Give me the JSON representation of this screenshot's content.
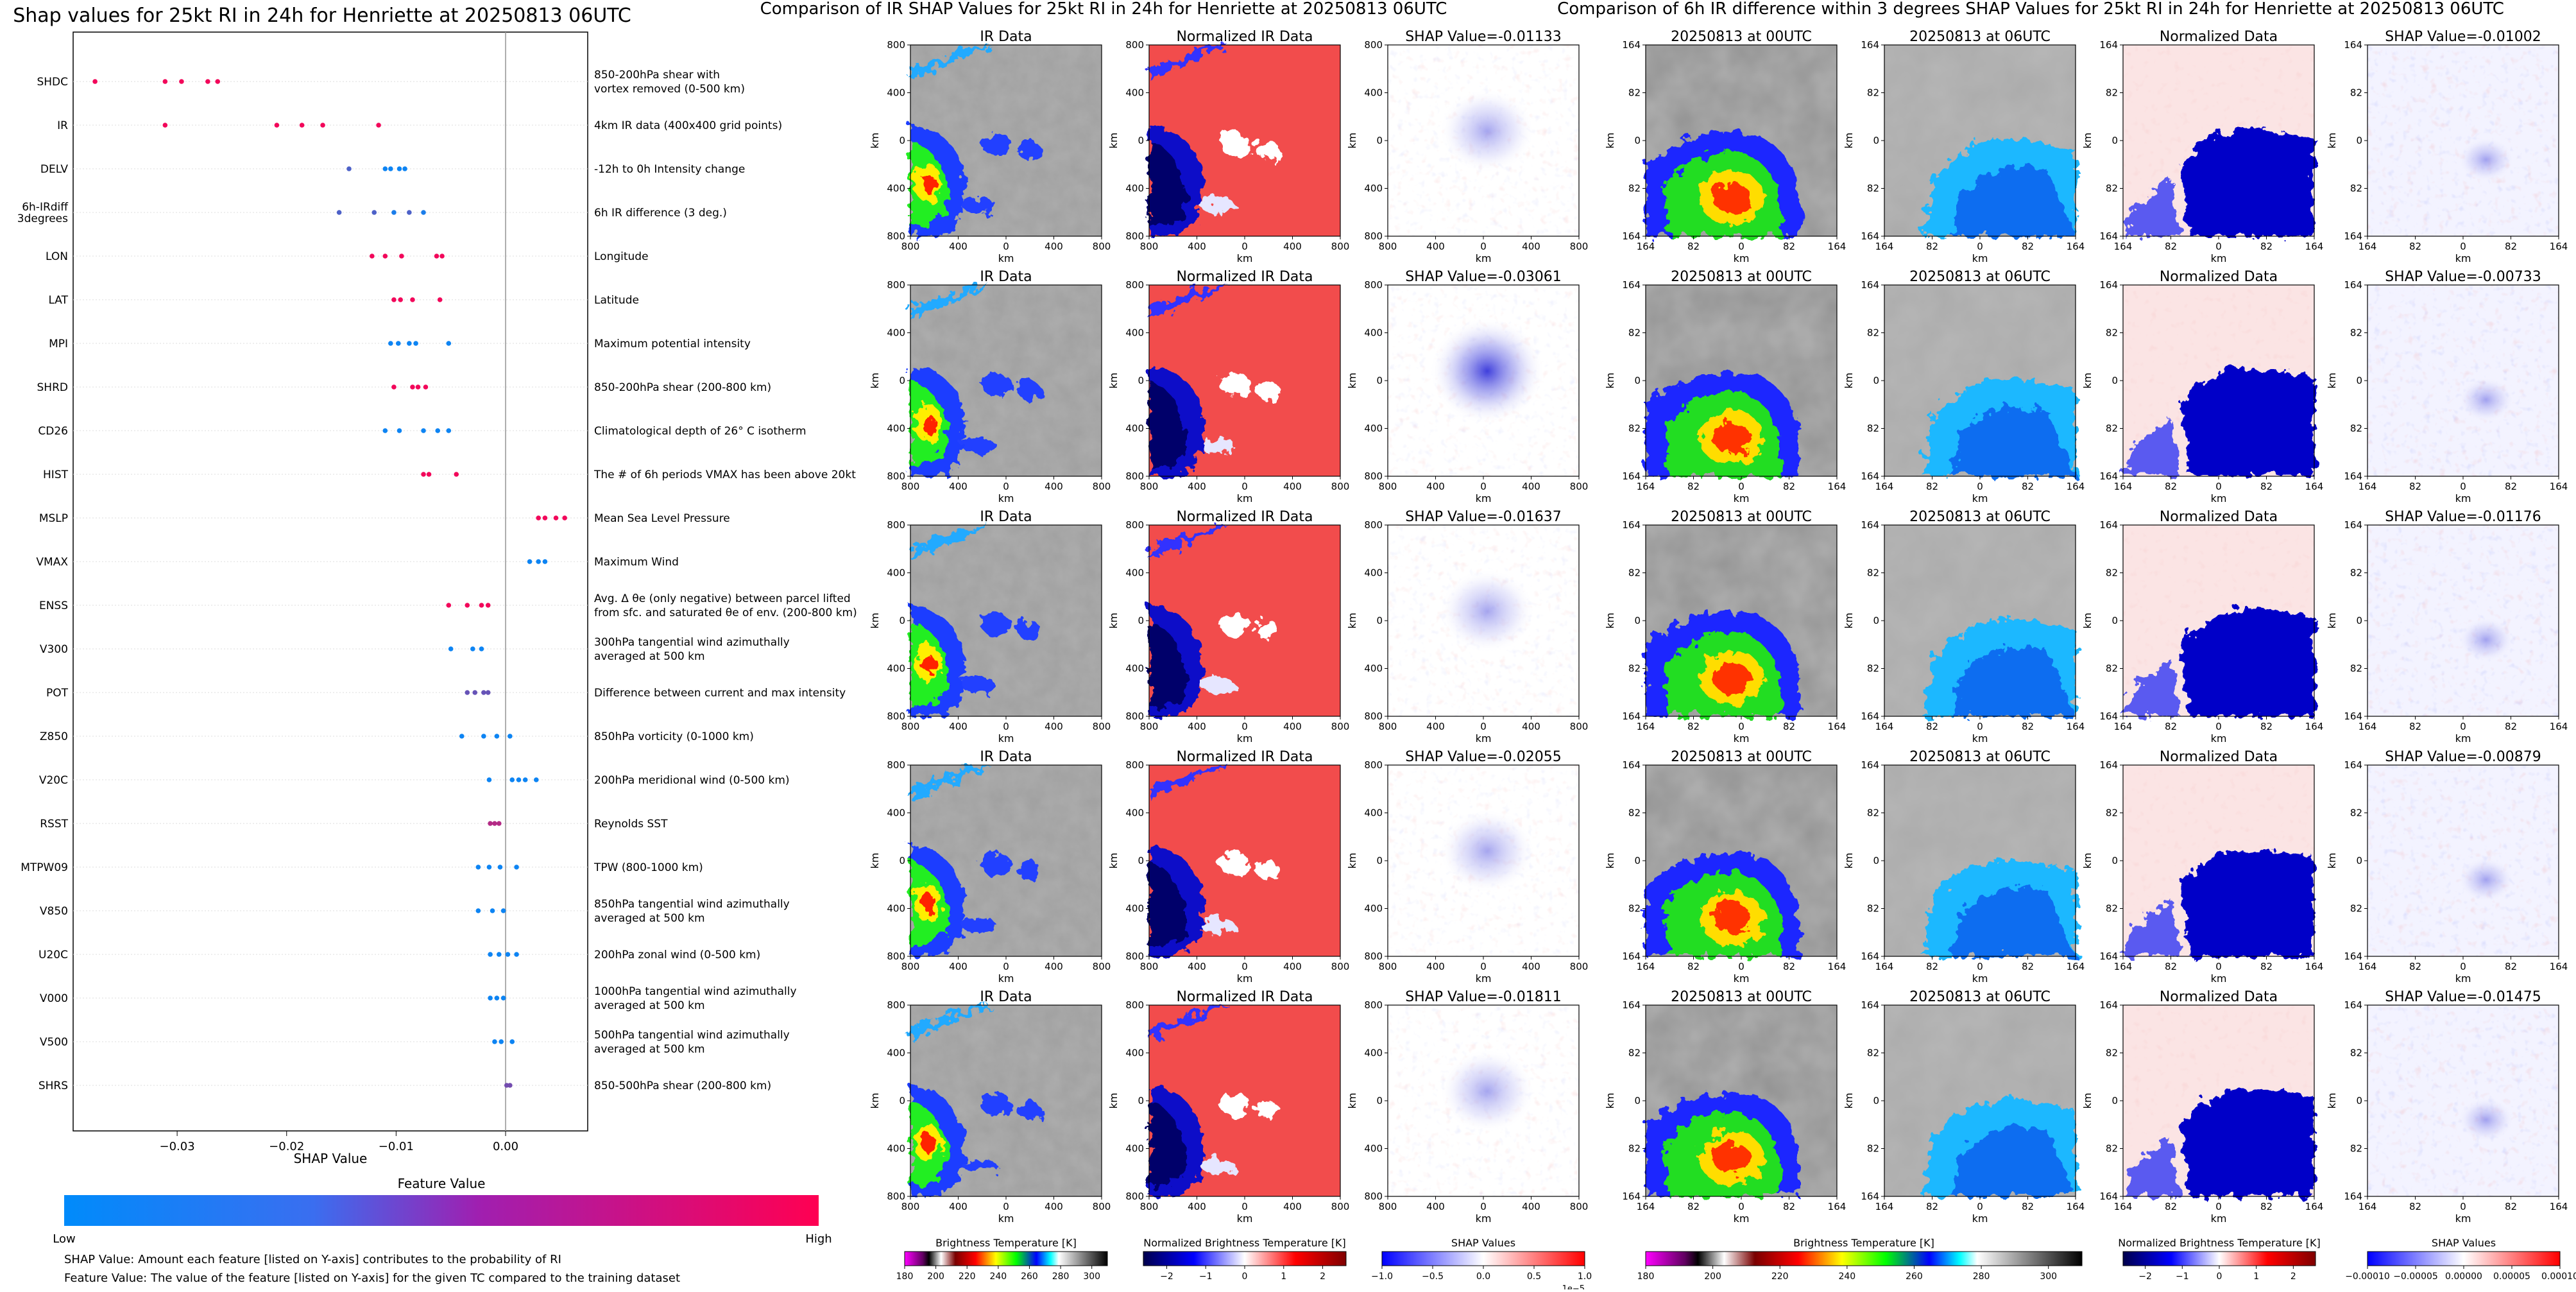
{
  "left_panel": {
    "title": "Shap values for 25kt RI in 24h for Henriette at 20250813 06UTC",
    "xlabel": "SHAP Value",
    "colorbar": {
      "title": "Feature Value",
      "low_label": "Low",
      "high_label": "High",
      "colors": [
        "#008bfb",
        "#5a53d0",
        "#c014a0",
        "#ff0052"
      ]
    },
    "notes": [
      "SHAP Value: Amount each feature [listed on Y-axis] contributes to the probability of RI",
      "Feature Value: The value of the feature [listed on Y-axis] for the given TC compared to the training dataset"
    ]
  },
  "chart_data": [
    {
      "type": "scatter",
      "title": "Shap values for 25kt RI in 24h for Henriette at 20250813 06UTC",
      "xlabel": "SHAP Value",
      "xlim": [
        -0.0395,
        0.0075
      ],
      "xticks": [
        -0.03,
        -0.02,
        -0.01,
        0.0
      ],
      "xtick_labels": [
        "−0.03",
        "−0.02",
        "−0.01",
        "0.00"
      ],
      "legend": "colorbar below plot (Low to High feature value)",
      "features": [
        {
          "name": "SHDC",
          "description": "850-200hPa shear with\nvortex removed (0-500 km)",
          "shap": [
            -0.0375,
            -0.0311,
            -0.0296,
            -0.0272,
            -0.0263
          ],
          "feature_value": [
            0.95,
            0.95,
            0.95,
            0.95,
            0.95
          ]
        },
        {
          "name": "IR",
          "description": "4km IR data (400x400 grid points)",
          "shap": [
            -0.0311,
            -0.0209,
            -0.0186,
            -0.0167,
            -0.0116
          ],
          "feature_value": [
            0.95,
            0.95,
            0.95,
            0.95,
            0.95
          ]
        },
        {
          "name": "DELV",
          "description": "-12h to 0h Intensity change",
          "shap": [
            -0.0143,
            -0.011,
            -0.0105,
            -0.0097,
            -0.0092
          ],
          "feature_value": [
            0.3,
            0.05,
            0.05,
            0.05,
            0.05
          ]
        },
        {
          "name": "6h-IRdiff\n3degrees",
          "description": "6h IR difference (3 deg.)",
          "shap": [
            -0.0152,
            -0.012,
            -0.0102,
            -0.0088,
            -0.0075
          ],
          "feature_value": [
            0.3,
            0.3,
            0.1,
            0.3,
            0.1
          ]
        },
        {
          "name": "LON",
          "description": "Longitude",
          "shap": [
            -0.0122,
            -0.011,
            -0.0095,
            -0.0063,
            -0.0058
          ],
          "feature_value": [
            0.95,
            0.95,
            0.95,
            0.95,
            0.95
          ]
        },
        {
          "name": "LAT",
          "description": "Latitude",
          "shap": [
            -0.0102,
            -0.0096,
            -0.0085,
            -0.006
          ],
          "feature_value": [
            0.95,
            0.95,
            0.95,
            0.95
          ]
        },
        {
          "name": "MPI",
          "description": "Maximum potential intensity",
          "shap": [
            -0.0105,
            -0.0098,
            -0.0088,
            -0.0082,
            -0.0052
          ],
          "feature_value": [
            0.05,
            0.05,
            0.05,
            0.05,
            0.05
          ]
        },
        {
          "name": "SHRD",
          "description": "850-200hPa shear (200-800 km)",
          "shap": [
            -0.0102,
            -0.0085,
            -0.008,
            -0.0073
          ],
          "feature_value": [
            0.95,
            0.95,
            0.95,
            0.95
          ]
        },
        {
          "name": "CD26",
          "description": "Climatological depth of 26° C isotherm",
          "shap": [
            -0.011,
            -0.0097,
            -0.0075,
            -0.0062,
            -0.0052
          ],
          "feature_value": [
            0.05,
            0.05,
            0.05,
            0.05,
            0.05
          ]
        },
        {
          "name": "HIST",
          "description": "The # of 6h periods VMAX has been above 20kt",
          "shap": [
            -0.0075,
            -0.007,
            -0.0045
          ],
          "feature_value": [
            0.95,
            0.95,
            0.95
          ]
        },
        {
          "name": "MSLP",
          "description": "Mean Sea Level Pressure",
          "shap": [
            0.003,
            0.0036,
            0.0046,
            0.0054
          ],
          "feature_value": [
            0.95,
            0.95,
            0.95,
            0.95
          ]
        },
        {
          "name": "VMAX",
          "description": "Maximum Wind",
          "shap": [
            0.0022,
            0.003,
            0.0036
          ],
          "feature_value": [
            0.05,
            0.05,
            0.05
          ]
        },
        {
          "name": "ENSS",
          "description": "Avg. Δ θe (only negative) between parcel lifted\nfrom sfc. and saturated θe of env. (200-800 km)",
          "shap": [
            -0.0052,
            -0.0035,
            -0.0022,
            -0.0016
          ],
          "feature_value": [
            0.95,
            0.95,
            0.95,
            0.95
          ]
        },
        {
          "name": "V300",
          "description": "300hPa tangential wind azimuthally\naveraged at 500 km",
          "shap": [
            -0.005,
            -0.003,
            -0.0022
          ],
          "feature_value": [
            0.05,
            0.05,
            0.05
          ]
        },
        {
          "name": "POT",
          "description": "Difference between current and max intensity",
          "shap": [
            -0.0035,
            -0.0028,
            -0.002,
            -0.0016
          ],
          "feature_value": [
            0.4,
            0.4,
            0.4,
            0.4
          ]
        },
        {
          "name": "Z850",
          "description": "850hPa vorticity (0-1000 km)",
          "shap": [
            -0.004,
            -0.002,
            -0.0008,
            0.0004
          ],
          "feature_value": [
            0.05,
            0.05,
            0.05,
            0.05
          ]
        },
        {
          "name": "V20C",
          "description": "200hPa meridional wind (0-500 km)",
          "shap": [
            -0.0015,
            0.0006,
            0.0012,
            0.0018,
            0.0028
          ],
          "feature_value": [
            0.05,
            0.05,
            0.05,
            0.05,
            0.05
          ]
        },
        {
          "name": "RSST",
          "description": "Reynolds SST",
          "shap": [
            -0.0014,
            -0.001,
            -0.0006
          ],
          "feature_value": [
            0.7,
            0.7,
            0.7
          ]
        },
        {
          "name": "MTPW09",
          "description": "TPW (800-1000 km)",
          "shap": [
            -0.0025,
            -0.0015,
            -0.0005,
            0.001
          ],
          "feature_value": [
            0.05,
            0.05,
            0.05,
            0.05
          ]
        },
        {
          "name": "V850",
          "description": "850hPa tangential wind azimuthally\naveraged at 500 km",
          "shap": [
            -0.0025,
            -0.0012,
            -0.0002
          ],
          "feature_value": [
            0.05,
            0.05,
            0.05
          ]
        },
        {
          "name": "U20C",
          "description": "200hPa zonal wind (0-500 km)",
          "shap": [
            -0.0014,
            -0.0006,
            0.0002,
            0.001
          ],
          "feature_value": [
            0.05,
            0.05,
            0.05,
            0.05
          ]
        },
        {
          "name": "V000",
          "description": "1000hPa tangential wind azimuthally\naveraged at 500 km",
          "shap": [
            -0.0014,
            -0.0008,
            -0.0002
          ],
          "feature_value": [
            0.05,
            0.05,
            0.05
          ]
        },
        {
          "name": "V500",
          "description": "500hPa tangential wind azimuthally\naveraged at 500 km",
          "shap": [
            -0.001,
            -0.0004,
            0.0006
          ],
          "feature_value": [
            0.05,
            0.05,
            0.05
          ]
        },
        {
          "name": "SHRS",
          "description": "850-500hPa shear (200-800 km)",
          "shap": [
            0.0001,
            0.0004
          ],
          "feature_value": [
            0.45,
            0.45
          ]
        }
      ]
    },
    {
      "type": "heatmap",
      "title": "Comparison of IR SHAP Values for 25kt RI in 24h for Henriette at 20250813 06UTC",
      "column_titles_static": [
        "IR Data",
        "Normalized IR Data"
      ],
      "shap_titles": [
        "SHAP Value=-0.01133",
        "SHAP Value=-0.03061",
        "SHAP Value=-0.01637",
        "SHAP Value=-0.02055",
        "SHAP Value=-0.01811"
      ],
      "xlabel": "km",
      "ylabel": "km",
      "xtick_labels": [
        "800",
        "400",
        "0",
        "400",
        "800"
      ],
      "ytick_labels": [
        "800",
        "400",
        "0",
        "400",
        "800"
      ],
      "colorbars": [
        {
          "label": "Brightness Temperature [K]",
          "ticks": [
            "180",
            "200",
            "220",
            "240",
            "260",
            "280",
            "300"
          ],
          "range": [
            180,
            310
          ]
        },
        {
          "label": "Normalized Brightness Temperature [K]",
          "ticks": [
            "−2",
            "−1",
            "0",
            "1",
            "2"
          ],
          "range": [
            -2.6,
            2.6
          ]
        },
        {
          "label": "SHAP Values",
          "ticks": [
            "−1.0",
            "−0.5",
            "0.0",
            "0.5",
            "1.0"
          ],
          "range": [
            -1,
            1
          ],
          "offset": "1e−5"
        }
      ]
    },
    {
      "type": "heatmap",
      "title": "Comparison of 6h IR difference within 3 degrees SHAP Values for 25kt RI in 24h for Henriette at 20250813 06UTC",
      "column_titles_static": [
        "20250813 at 00UTC",
        "20250813 at 06UTC",
        "Normalized Data"
      ],
      "shap_titles": [
        "SHAP Value=-0.01002",
        "SHAP Value=-0.00733",
        "SHAP Value=-0.01176",
        "SHAP Value=-0.00879",
        "SHAP Value=-0.01475"
      ],
      "xlabel": "km",
      "ylabel": "km",
      "xtick_labels": [
        "164",
        "82",
        "0",
        "82",
        "164"
      ],
      "ytick_labels": [
        "164",
        "82",
        "0",
        "82",
        "164"
      ],
      "colorbars": [
        {
          "label": "Brightness Temperature [K]",
          "ticks": [
            "180",
            "200",
            "220",
            "240",
            "260",
            "280",
            "300"
          ],
          "range": [
            180,
            310
          ]
        },
        {
          "label": "Normalized Brightness Temperature [K]",
          "ticks": [
            "−2",
            "−1",
            "0",
            "1",
            "2"
          ],
          "range": [
            -2.6,
            2.6
          ]
        },
        {
          "label": "SHAP Values",
          "ticks": [
            "−0.00010",
            "−0.00005",
            "0.00000",
            "0.00005",
            "0.00010"
          ],
          "range": [
            -0.0001,
            0.0001
          ]
        }
      ]
    }
  ]
}
